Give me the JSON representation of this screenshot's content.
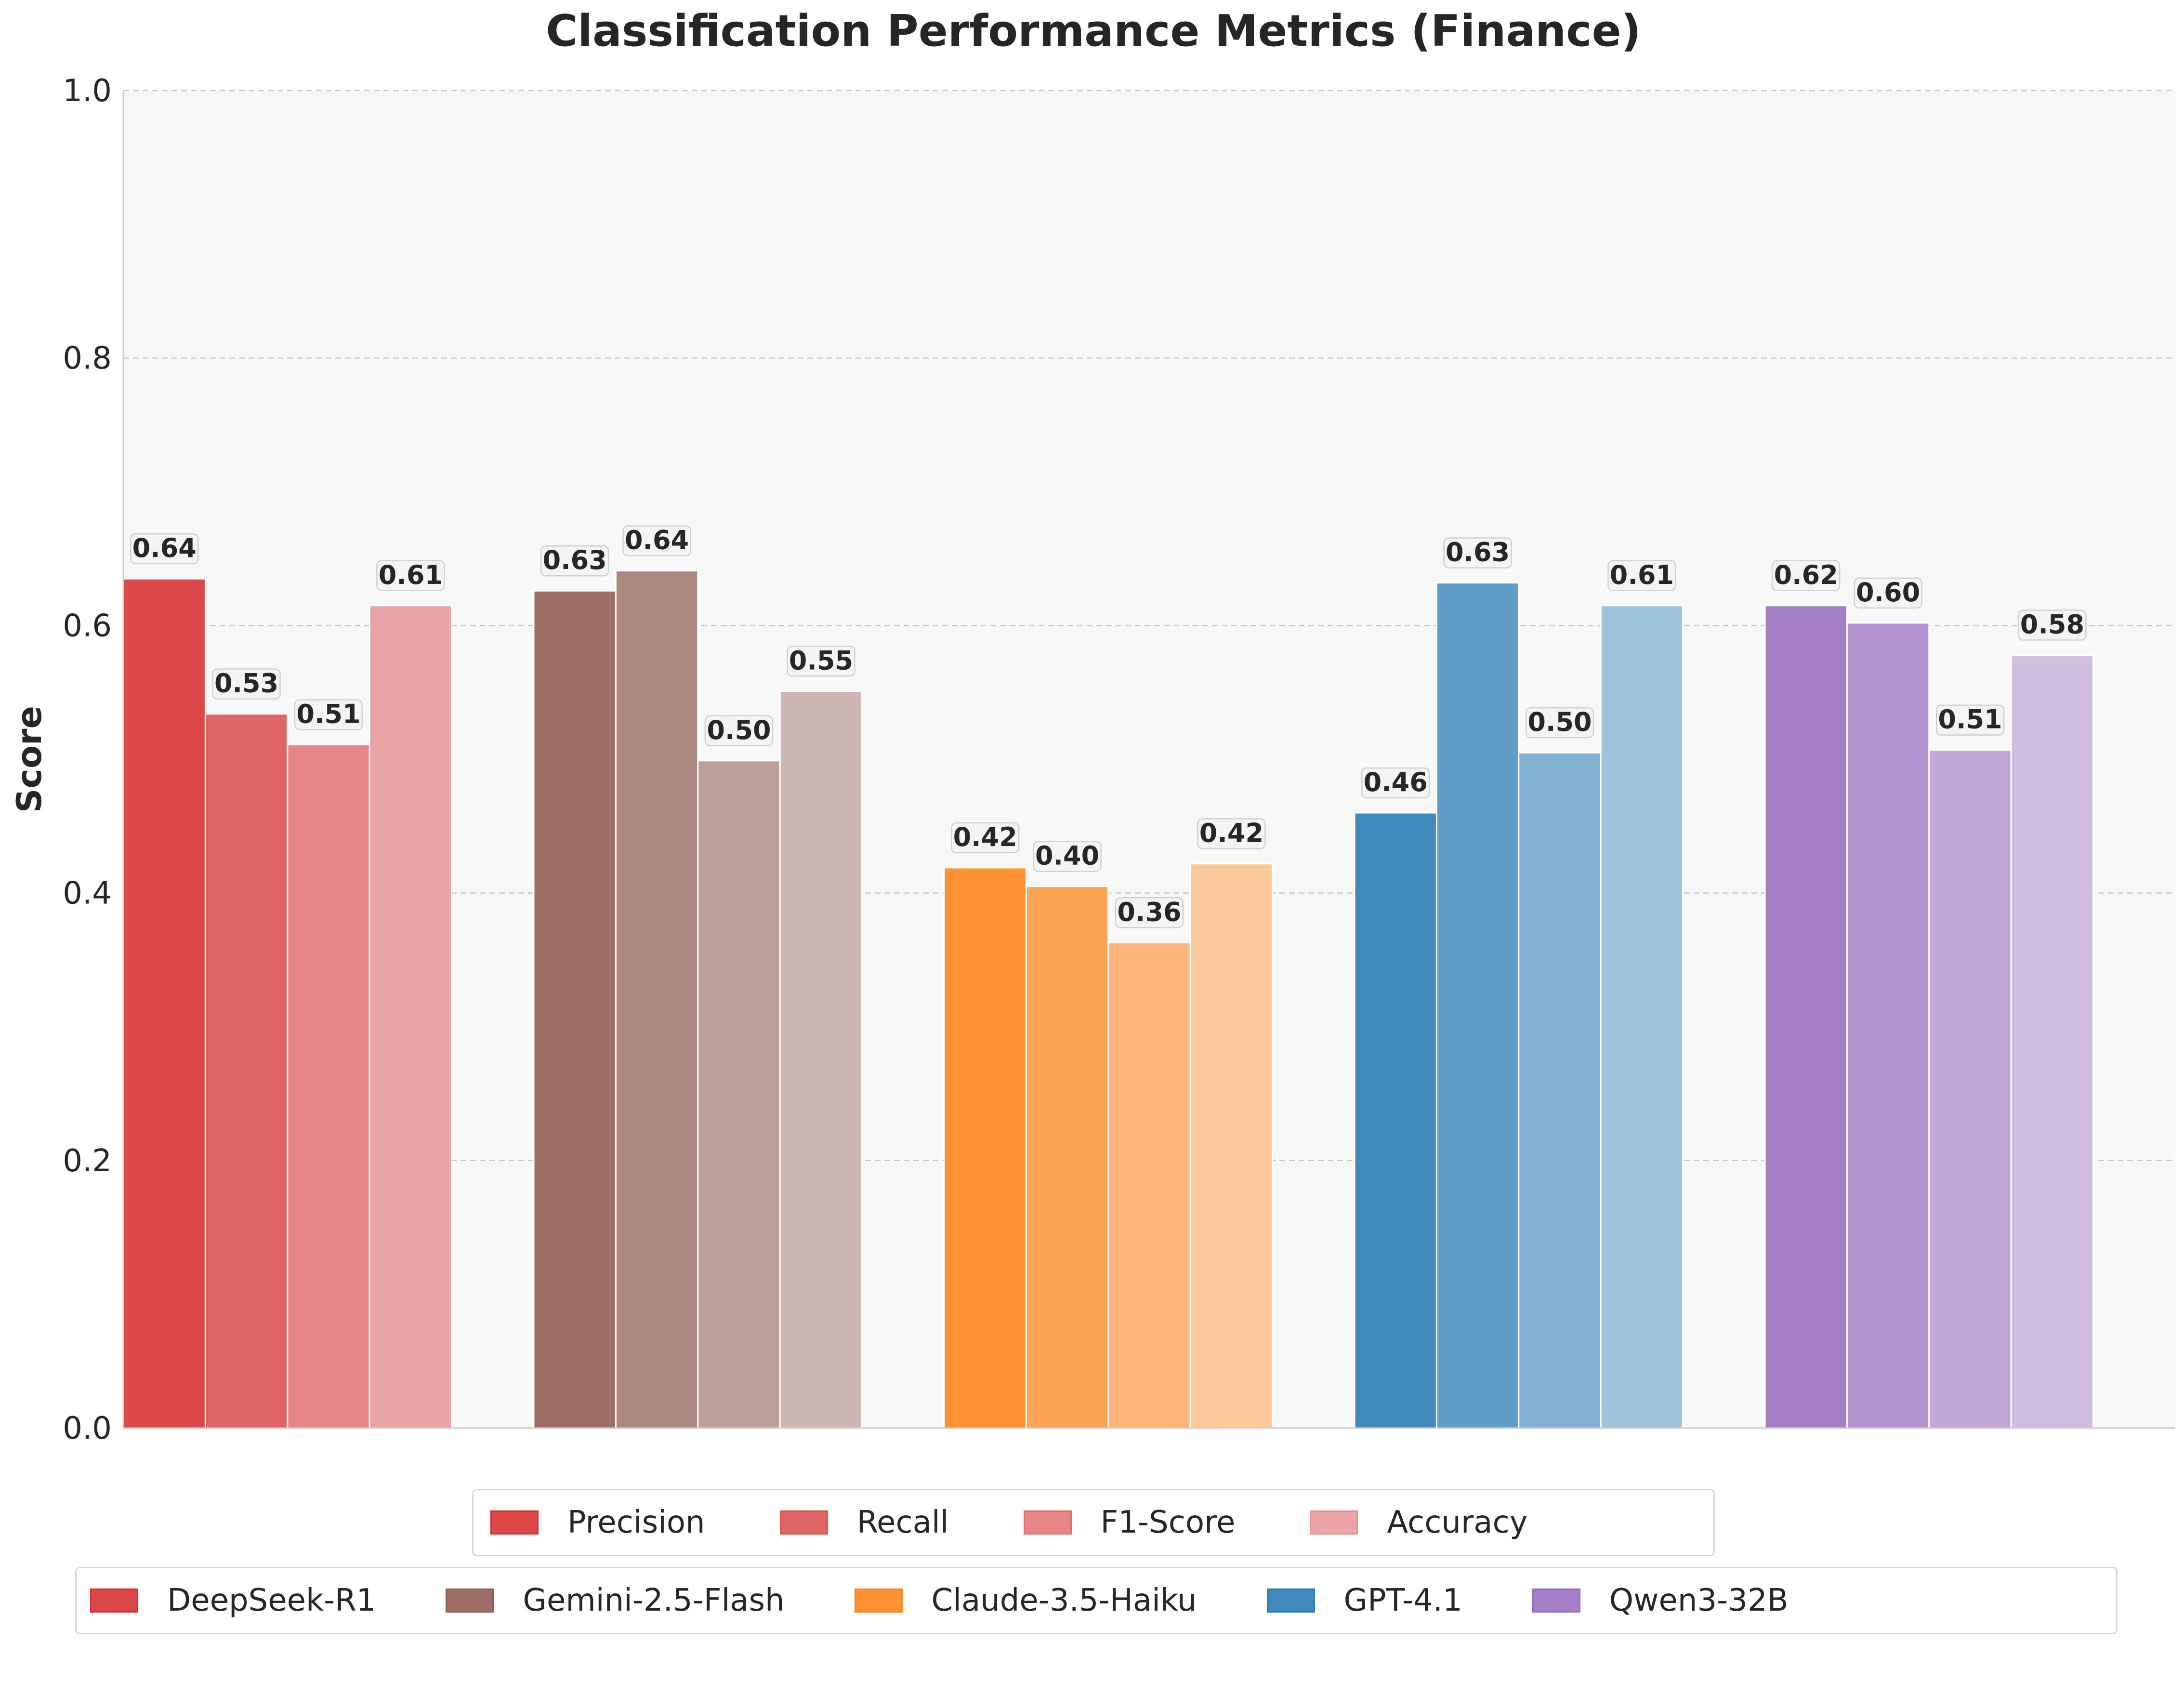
{
  "chart_data": {
    "type": "bar",
    "title": "Classification Performance Metrics (Finance)",
    "xlabel": "",
    "ylabel": "Score",
    "ylim": [
      0,
      1.0
    ],
    "yticks": [
      "0.0",
      "0.2",
      "0.4",
      "0.6",
      "0.8",
      "1.0"
    ],
    "grid": "y, dashed",
    "categories": [
      "DeepSeek-R1",
      "Gemini-2.5-Flash",
      "Claude-3.5-Haiku",
      "GPT-4.1",
      "Qwen3-32B"
    ],
    "metrics": [
      "Precision",
      "Recall",
      "F1-Score",
      "Accuracy"
    ],
    "series": [
      {
        "name": "Precision",
        "values": [
          0.635,
          0.626,
          0.419,
          0.46,
          0.615
        ],
        "labels": [
          "0.64",
          "0.63",
          "0.42",
          "0.46",
          "0.62"
        ]
      },
      {
        "name": "Recall",
        "values": [
          0.534,
          0.641,
          0.405,
          0.632,
          0.602
        ],
        "labels": [
          "0.53",
          "0.64",
          "0.40",
          "0.63",
          "0.60"
        ]
      },
      {
        "name": "F1-Score",
        "values": [
          0.511,
          0.499,
          0.363,
          0.505,
          0.507
        ],
        "labels": [
          "0.51",
          "0.50",
          "0.36",
          "0.50",
          "0.51"
        ]
      },
      {
        "name": "Accuracy",
        "values": [
          0.615,
          0.551,
          0.422,
          0.615,
          0.578
        ],
        "labels": [
          "0.61",
          "0.55",
          "0.42",
          "0.61",
          "0.58"
        ]
      }
    ],
    "model_colors": [
      "#d62728",
      "#8c564b",
      "#ff7f0e",
      "#1f77b4",
      "#9467bd"
    ],
    "metric_alphas": [
      0.85,
      0.7,
      0.55,
      0.4
    ],
    "legend_placement": "bottom, two rows (metrics, then models)"
  },
  "legends": {
    "metrics": [
      {
        "label": "Precision",
        "color": "#d62728",
        "alpha": 0.85
      },
      {
        "label": "Recall",
        "color": "#d62728",
        "alpha": 0.7
      },
      {
        "label": "F1-Score",
        "color": "#d62728",
        "alpha": 0.55
      },
      {
        "label": "Accuracy",
        "color": "#d62728",
        "alpha": 0.4
      }
    ],
    "models": [
      {
        "label": "DeepSeek-R1",
        "color": "#d62728"
      },
      {
        "label": "Gemini-2.5-Flash",
        "color": "#8c564b"
      },
      {
        "label": "Claude-3.5-Haiku",
        "color": "#ff7f0e"
      },
      {
        "label": "GPT-4.1",
        "color": "#1f77b4"
      },
      {
        "label": "Qwen3-32B",
        "color": "#9467bd"
      }
    ]
  }
}
